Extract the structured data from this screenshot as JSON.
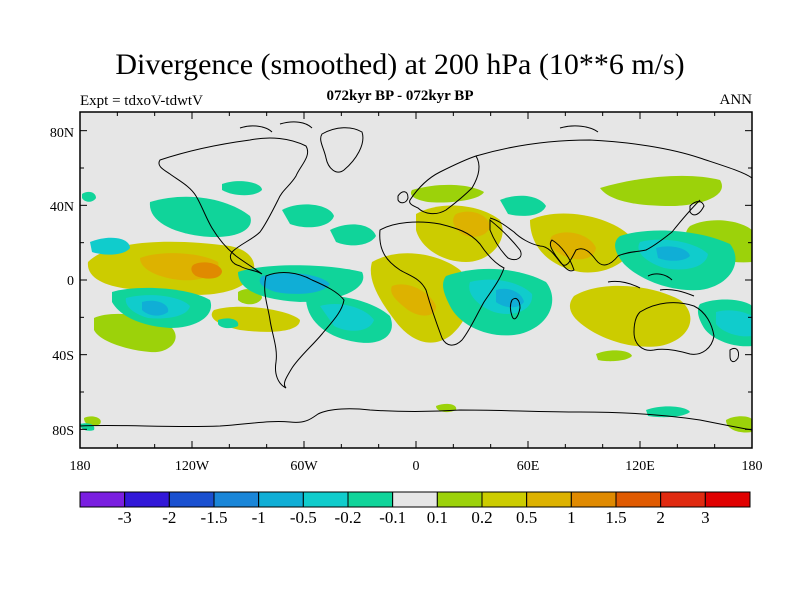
{
  "title": "Divergence (smoothed) at 200 hPa (10**6 m/s)",
  "subtitle_left": "Expt = tdxoV-tdwtV",
  "subtitle_center": "072kyr BP - 072kyr BP",
  "subtitle_right": "ANN",
  "lat_ticks": [
    "80N",
    "40N",
    "0",
    "40S",
    "80S"
  ],
  "lat_values": [
    80,
    40,
    0,
    -40,
    -80
  ],
  "lon_ticks": [
    "180",
    "120W",
    "60W",
    "0",
    "60E",
    "120E",
    "180"
  ],
  "lon_values": [
    -180,
    -120,
    -60,
    0,
    60,
    120,
    180
  ],
  "colorbar": {
    "labels": [
      "-3",
      "-2",
      "-1.5",
      "-1",
      "-0.5",
      "-0.2",
      "-0.1",
      "0.1",
      "0.2",
      "0.5",
      "1",
      "1.5",
      "2",
      "3"
    ],
    "colors": [
      "#7a1fe0",
      "#3218d8",
      "#1a50d0",
      "#1a86d8",
      "#10aed6",
      "#10cccc",
      "#10d49a",
      "#e6e6e6",
      "#9cd20a",
      "#cccc00",
      "#ddb200",
      "#e08a00",
      "#e05a00",
      "#e02a10",
      "#e00000"
    ]
  },
  "colors": {
    "background": "#e6e6e6",
    "coast": "#000000"
  }
}
